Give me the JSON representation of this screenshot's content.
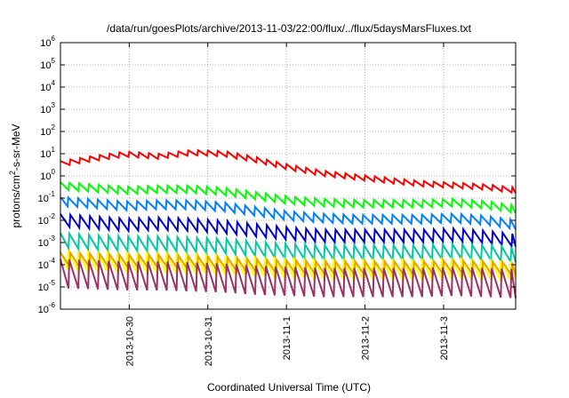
{
  "chart_data": {
    "type": "line",
    "title": "/data/run/goesPlots/archive/2013-11-03/22:00/flux/../flux/5daysMarsFluxes.txt",
    "xlabel": "Coordinated Universal Time (UTC)",
    "ylabel_base": "protons/cm",
    "ylabel_exp": "2",
    "ylabel_rest": "-s-sr-MeV",
    "yscale": "log",
    "ylim": [
      1e-06,
      1000000.0
    ],
    "y_ticks": [
      {
        "exp": "-6",
        "value": -6
      },
      {
        "exp": "-5",
        "value": -5
      },
      {
        "exp": "-4",
        "value": -4
      },
      {
        "exp": "-3",
        "value": -3
      },
      {
        "exp": "-2",
        "value": -2
      },
      {
        "exp": "-1",
        "value": -1
      },
      {
        "exp": "0",
        "value": 0
      },
      {
        "exp": "1",
        "value": 1
      },
      {
        "exp": "2",
        "value": 2
      },
      {
        "exp": "3",
        "value": 3
      },
      {
        "exp": "4",
        "value": 4
      },
      {
        "exp": "5",
        "value": 5
      },
      {
        "exp": "6",
        "value": 6
      }
    ],
    "y_tick_base": "10",
    "xlim": [
      "2013-10-29T03:00",
      "2013-11-03T22:00"
    ],
    "x_ticks": [
      "2013-10-30",
      "2013-10-31",
      "2013-11-1",
      "2013-11-2",
      "2013-11-3"
    ],
    "grid": true,
    "legend": "none",
    "series": [
      {
        "color": "#ff0000",
        "period_h": 3.0,
        "amp": 0.12,
        "x_hours": [
          0,
          10,
          20,
          30,
          40,
          50,
          60,
          70,
          80,
          90,
          100,
          110,
          120,
          130,
          139
        ],
        "log10_y": [
          0.55,
          0.78,
          0.98,
          0.88,
          1.05,
          1.0,
          0.72,
          0.38,
          0.12,
          -0.05,
          -0.2,
          -0.35,
          -0.42,
          -0.5,
          -0.65
        ]
      },
      {
        "color": "#00ff00",
        "period_h": 3.0,
        "amp": 0.17,
        "x_hours": [
          0,
          10,
          20,
          30,
          40,
          50,
          60,
          70,
          80,
          90,
          100,
          110,
          120,
          130,
          139
        ],
        "log10_y": [
          -0.45,
          -0.55,
          -0.65,
          -0.6,
          -0.6,
          -0.7,
          -0.9,
          -1.1,
          -1.2,
          -1.25,
          -1.25,
          -1.25,
          -1.2,
          -1.3,
          -1.5
        ]
      },
      {
        "color": "#0080ff",
        "period_h": 3.0,
        "amp": 0.2,
        "x_hours": [
          0,
          10,
          20,
          30,
          40,
          50,
          60,
          70,
          80,
          90,
          100,
          110,
          120,
          130,
          139
        ],
        "log10_y": [
          -1.15,
          -1.25,
          -1.35,
          -1.3,
          -1.3,
          -1.4,
          -1.6,
          -1.8,
          -1.9,
          -1.95,
          -1.95,
          -1.95,
          -1.9,
          -2.0,
          -2.2
        ]
      },
      {
        "color": "#0000cc",
        "period_h": 3.0,
        "amp": 0.28,
        "x_hours": [
          0,
          10,
          20,
          30,
          40,
          50,
          60,
          70,
          80,
          90,
          100,
          110,
          120,
          130,
          139
        ],
        "log10_y": [
          -2.0,
          -2.1,
          -2.2,
          -2.15,
          -2.2,
          -2.3,
          -2.45,
          -2.6,
          -2.7,
          -2.7,
          -2.7,
          -2.7,
          -2.65,
          -2.75,
          -2.9
        ]
      },
      {
        "color": "#00c8a0",
        "period_h": 3.0,
        "amp": 0.33,
        "x_hours": [
          0,
          10,
          20,
          30,
          40,
          50,
          60,
          70,
          80,
          90,
          100,
          110,
          120,
          130,
          139
        ],
        "log10_y": [
          -2.9,
          -3.0,
          -3.05,
          -3.05,
          -3.1,
          -3.15,
          -3.3,
          -3.4,
          -3.45,
          -3.45,
          -3.45,
          -3.45,
          -3.4,
          -3.45,
          -3.55
        ]
      },
      {
        "color": "#ffff00",
        "period_h": 3.0,
        "amp": 0.4,
        "x_hours": [
          0,
          10,
          20,
          30,
          40,
          50,
          60,
          70,
          80,
          90,
          100,
          110,
          120,
          130,
          139
        ],
        "log10_y": [
          -3.8,
          -3.85,
          -3.9,
          -3.9,
          -3.95,
          -4.0,
          -4.1,
          -4.15,
          -4.2,
          -4.2,
          -4.2,
          -4.2,
          -4.15,
          -4.2,
          -4.25
        ]
      },
      {
        "color": "#e8a000",
        "period_h": 3.0,
        "amp": 0.3,
        "x_hours": [
          0,
          10,
          20,
          30,
          40,
          50,
          60,
          70,
          80,
          90,
          100,
          110,
          120,
          130,
          139
        ],
        "log10_y": [
          -3.75,
          -3.8,
          -3.85,
          -3.85,
          -3.9,
          -3.95,
          -4.05,
          -4.1,
          -4.15,
          -4.15,
          -4.15,
          -4.15,
          -4.1,
          -4.15,
          -4.2
        ]
      },
      {
        "color": "#993366",
        "period_h": 3.0,
        "amp": 0.65,
        "x_hours": [
          0,
          10,
          20,
          30,
          40,
          50,
          60,
          70,
          80,
          90,
          100,
          110,
          120,
          130,
          139
        ],
        "log10_y": [
          -4.4,
          -4.45,
          -4.5,
          -4.5,
          -4.55,
          -4.6,
          -4.7,
          -4.75,
          -4.8,
          -4.8,
          -4.8,
          -4.8,
          -4.75,
          -4.8,
          -4.85
        ]
      }
    ]
  }
}
